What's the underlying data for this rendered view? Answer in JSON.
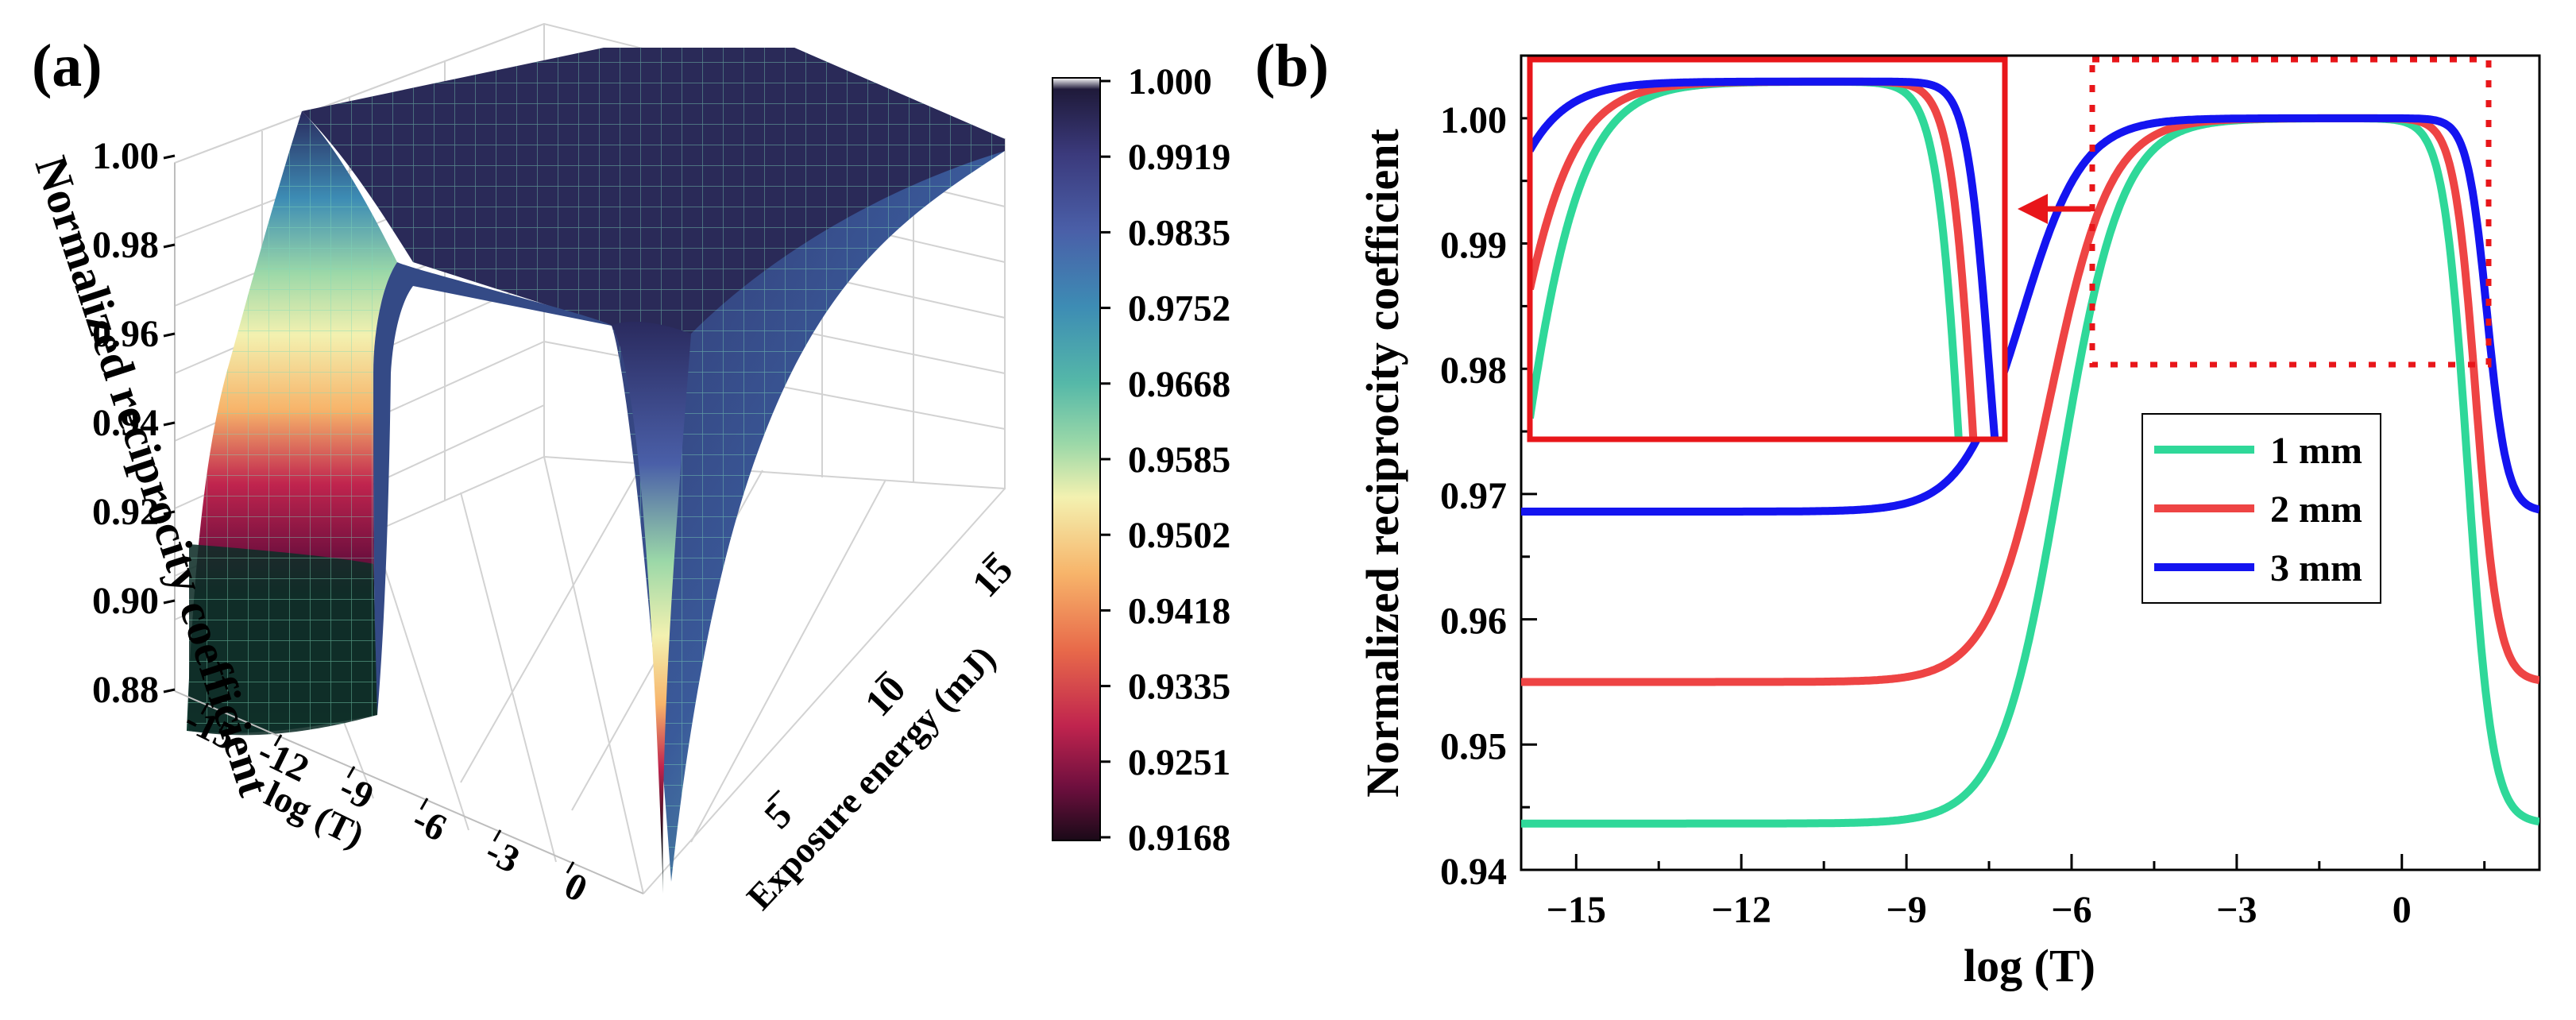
{
  "panels": {
    "a_label": "(a)",
    "b_label": "(b)"
  },
  "chart_data": [
    {
      "type": "surface3d",
      "panel": "(a)",
      "zlabel": "Normalized reciprocity coefficient",
      "xlabel": "log (T)",
      "ylabel": "Exposure energy (mJ)",
      "x_ticks": [
        "-15",
        "-12",
        "-9",
        "-6",
        "-3",
        "0"
      ],
      "y_ticks": [
        "5",
        "10",
        "15"
      ],
      "z_ticks": [
        "0.88",
        "0.90",
        "0.92",
        "0.94",
        "0.96",
        "0.98",
        "1.00"
      ],
      "zlim": [
        0.88,
        1.0
      ],
      "colorbar": {
        "ticks": [
          "1.000",
          "0.9919",
          "0.9835",
          "0.9752",
          "0.9668",
          "0.9585",
          "0.9502",
          "0.9418",
          "0.9335",
          "0.9251",
          "0.9168"
        ],
        "range": [
          0.9168,
          1.0
        ],
        "colormap": [
          "#1f1a3a",
          "#3b3a7c",
          "#4a5fa8",
          "#3d8cb4",
          "#55b8a8",
          "#9bd8a8",
          "#f3f1b0",
          "#f7b46a",
          "#e86a4a",
          "#c0244e",
          "#6e0f3e",
          "#1a0a18"
        ]
      }
    },
    {
      "type": "line",
      "panel": "(b)",
      "xlabel": "log (T)",
      "ylabel": "Normalized reciprocity coefficient",
      "xlim": [
        -16,
        2.5
      ],
      "ylim": [
        0.94,
        1.005
      ],
      "x_ticks": [
        "−15",
        "−12",
        "−9",
        "−6",
        "−3",
        "0"
      ],
      "x_tick_values": [
        -15,
        -12,
        -9,
        -6,
        -3,
        0
      ],
      "y_ticks": [
        "0.94",
        "0.95",
        "0.96",
        "0.97",
        "0.98",
        "0.99",
        "1.00"
      ],
      "y_tick_values": [
        0.94,
        0.95,
        0.96,
        0.97,
        0.98,
        0.99,
        1.0
      ],
      "series": [
        {
          "name": "1 mm",
          "color": "#2fd899",
          "min": 0.9437,
          "x_rise": -6.2,
          "w_rise": 0.55,
          "x_fall": 1.2,
          "w_fall": 0.22
        },
        {
          "name": "2 mm",
          "color": "#ee4444",
          "min": 0.955,
          "x_rise": -6.4,
          "w_rise": 0.55,
          "x_fall": 1.35,
          "w_fall": 0.2
        },
        {
          "name": "3 mm",
          "color": "#1414f0",
          "min": 0.9686,
          "x_rise": -6.9,
          "w_rise": 0.55,
          "x_fall": 1.55,
          "w_fall": 0.18
        }
      ],
      "legend": {
        "position": "center-right",
        "entries": [
          "1 mm",
          "2 mm",
          "3 mm"
        ]
      },
      "inset": {
        "xlim": [
          -5.8,
          1.8
        ],
        "ylim": [
          0.9805,
          1.0012
        ],
        "source": "dotted red box near the plateau top"
      }
    }
  ]
}
